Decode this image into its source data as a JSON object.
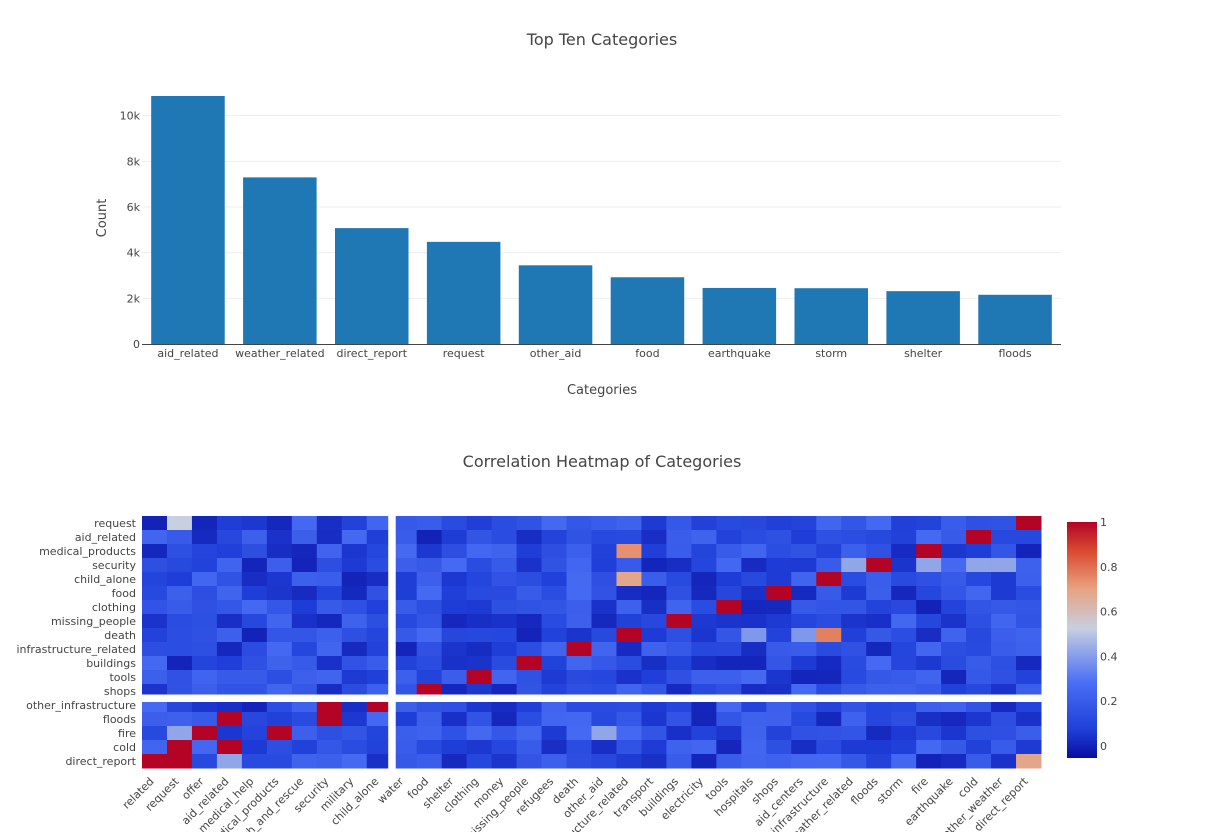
{
  "chart_data": [
    {
      "type": "bar",
      "title": "Top Ten Categories",
      "xlabel": "Categories",
      "ylabel": "Count",
      "categories": [
        "aid_related",
        "weather_related",
        "direct_report",
        "request",
        "other_aid",
        "food",
        "earthquake",
        "storm",
        "shelter",
        "floods"
      ],
      "values": [
        10860,
        7297,
        5075,
        4474,
        3446,
        2923,
        2455,
        2443,
        2314,
        2155
      ],
      "ylim": [
        0,
        11430
      ],
      "yticks": [
        0,
        2000,
        4000,
        6000,
        8000,
        10000
      ],
      "ytick_labels": [
        "0",
        "2k",
        "4k",
        "6k",
        "8k",
        "10k"
      ],
      "color": "#1f77b4",
      "grid": true
    },
    {
      "type": "heatmap",
      "title": "Correlation Heatmap of Categories",
      "x_tick_labels": [
        "related",
        "request",
        "offer",
        "aid_related",
        "medical_help",
        "medical_products",
        "search_and_rescue",
        "security",
        "military",
        "child_alone",
        "water",
        "food",
        "shelter",
        "clothing",
        "money",
        "missing_people",
        "refugees",
        "death",
        "other_aid",
        "infrastructure_related",
        "transport",
        "buildings",
        "electricity",
        "tools",
        "hospitals",
        "shops",
        "aid_centers",
        "other_infrastructure",
        "weather_related",
        "floods",
        "storm",
        "fire",
        "earthquake",
        "cold",
        "other_weather",
        "direct_report"
      ],
      "y_tick_labels": [
        "request",
        "aid_related",
        "medical_products",
        "security",
        "child_alone",
        "food",
        "clothing",
        "missing_people",
        "death",
        "infrastructure_related",
        "buildings",
        "tools",
        "shops",
        "other_infrastructure",
        "floods",
        "fire",
        "cold",
        "direct_report"
      ],
      "colorscale": [
        "#0a0da0",
        "#1f3fd8",
        "#4a6ef5",
        "#b6c6ea",
        "#e8a17e",
        "#d9482f",
        "#b40426"
      ],
      "colorbar_ticks": [
        0,
        0.2,
        0.4,
        0.6,
        0.8,
        1
      ],
      "colorbar_tick_labels": [
        "0",
        "0.2",
        "0.4",
        "0.6",
        "0.8",
        "1"
      ]
    }
  ]
}
